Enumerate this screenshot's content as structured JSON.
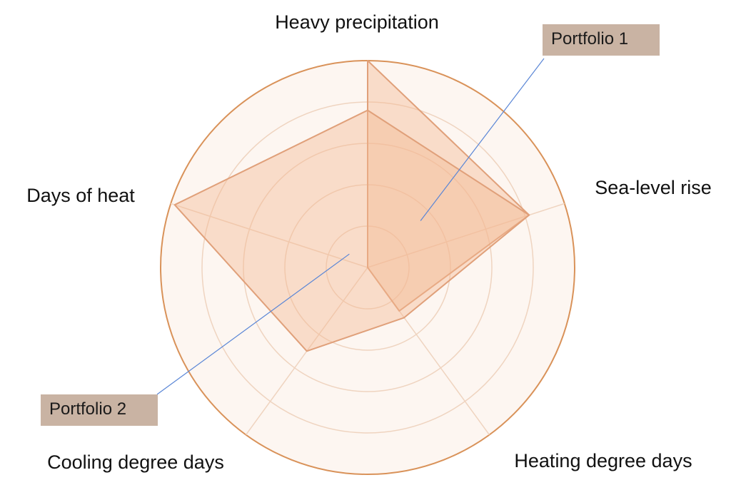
{
  "chart_data": {
    "type": "radar",
    "axes": [
      "Heavy precipitation",
      "Sea-level rise",
      "Heating degree days",
      "Cooling degree days",
      "Days of heat"
    ],
    "rlim": [
      0,
      5
    ],
    "rings": 5,
    "grid": true,
    "series": [
      {
        "name": "Portfolio 1",
        "values": [
          5.0,
          4.1,
          1.3,
          0.0,
          0.0
        ]
      },
      {
        "name": "Portfolio 2",
        "values": [
          3.8,
          4.1,
          1.5,
          2.5,
          4.9
        ]
      }
    ],
    "colors": {
      "outer_ring": "#d99259",
      "grid": "#efd4c0",
      "polygon_fill": "#f2b892",
      "polygon_stroke": "#e0a07a",
      "background": "#fdf6f1",
      "callout_box": "#c9b3a3",
      "leader_line": "#5a86d6"
    }
  }
}
